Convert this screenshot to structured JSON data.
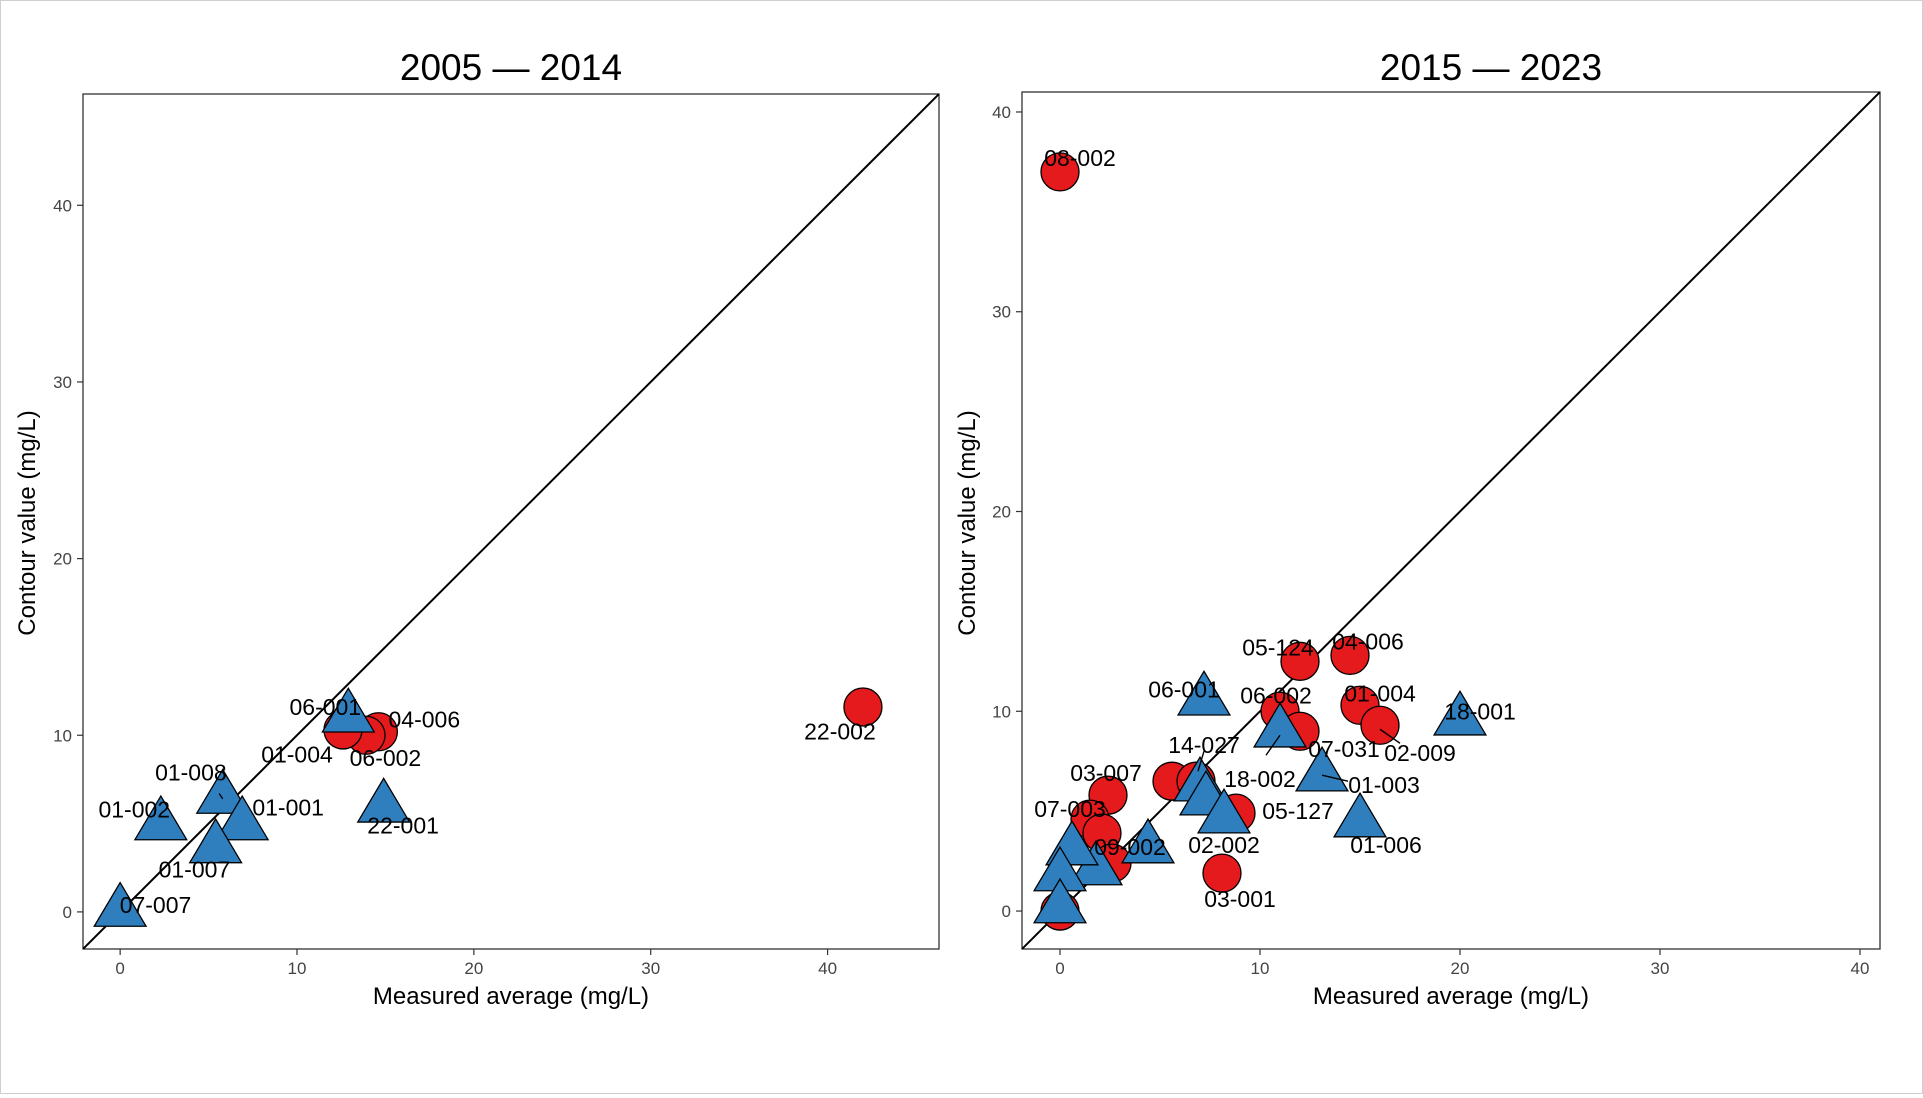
{
  "colors": {
    "circle": "#e41a1c",
    "triangle": "#2f7fbf",
    "outline": "#000000"
  },
  "chart_data": [
    {
      "type": "scatter",
      "title": "2005 — 2014",
      "xlabel": "Measured average (mg/L)",
      "ylabel": "Contour value (mg/L)",
      "xlim": [
        -2.1,
        46.3
      ],
      "ylim": [
        -2.1,
        46.3
      ],
      "xticks": [
        0,
        10,
        20,
        30,
        40
      ],
      "yticks": [
        0,
        10,
        20,
        30,
        40
      ],
      "reference_line": "y = x",
      "grid": false,
      "legend": "none",
      "points": [
        {
          "label": "22-002",
          "x": 42.0,
          "y": 11.6,
          "shape": "circle"
        },
        {
          "label": "04-006",
          "x": 14.6,
          "y": 10.2,
          "shape": "circle"
        },
        {
          "label": "06-002",
          "x": 13.9,
          "y": 10.0,
          "shape": "circle"
        },
        {
          "label": "01-004",
          "x": 12.6,
          "y": 10.3,
          "shape": "circle"
        },
        {
          "label": "06-001",
          "x": 12.9,
          "y": 11.3,
          "shape": "triangle"
        },
        {
          "label": "22-001",
          "x": 14.9,
          "y": 6.2,
          "shape": "triangle"
        },
        {
          "label": "01-008",
          "x": 5.8,
          "y": 6.7,
          "shape": "triangle"
        },
        {
          "label": "01-001",
          "x": 6.9,
          "y": 5.2,
          "shape": "triangle"
        },
        {
          "label": "01-002",
          "x": 2.3,
          "y": 5.2,
          "shape": "triangle"
        },
        {
          "label": "01-007",
          "x": 5.4,
          "y": 3.9,
          "shape": "triangle"
        },
        {
          "label": "07-007",
          "x": 0.0,
          "y": 0.3,
          "shape": "triangle"
        }
      ],
      "labels": [
        {
          "text": "22-002",
          "x": 40.7,
          "y": 10.2
        },
        {
          "text": "04-006",
          "x": 17.2,
          "y": 10.9
        },
        {
          "text": "06-002",
          "x": 15.0,
          "y": 8.7
        },
        {
          "text": "01-004",
          "x": 10.0,
          "y": 8.9
        },
        {
          "text": "06-001",
          "x": 11.6,
          "y": 11.6
        },
        {
          "text": "22-001",
          "x": 16.0,
          "y": 4.9
        },
        {
          "text": "01-008",
          "x": 4.0,
          "y": 7.9
        },
        {
          "text": "01-001",
          "x": 9.5,
          "y": 5.9
        },
        {
          "text": "01-002",
          "x": 0.8,
          "y": 5.8
        },
        {
          "text": "01-007",
          "x": 4.2,
          "y": 2.4
        },
        {
          "text": "07-007",
          "x": 2.0,
          "y": 0.4
        }
      ],
      "leaders": [
        {
          "x1": 5.8,
          "y1": 6.4,
          "x2": 5.6,
          "y2": 6.7
        }
      ]
    },
    {
      "type": "scatter",
      "title": "2015 — 2023",
      "xlabel": "Measured average (mg/L)",
      "ylabel": "Contour value (mg/L)",
      "xlim": [
        -1.9,
        41.0
      ],
      "ylim": [
        -1.9,
        41.0
      ],
      "xticks": [
        0,
        10,
        20,
        30,
        40
      ],
      "yticks": [
        0,
        10,
        20,
        30,
        40
      ],
      "reference_line": "y = x",
      "grid": false,
      "legend": "none",
      "points": [
        {
          "label": "08-002",
          "x": 0.0,
          "y": 37.0,
          "shape": "circle"
        },
        {
          "label": "05-124",
          "x": 12.0,
          "y": 12.5,
          "shape": "circle"
        },
        {
          "label": "04-006",
          "x": 14.5,
          "y": 12.8,
          "shape": "circle"
        },
        {
          "label": "01-004",
          "x": 15.0,
          "y": 10.3,
          "shape": "circle"
        },
        {
          "label": "02-009",
          "x": 16.0,
          "y": 9.3,
          "shape": "circle"
        },
        {
          "label": "06-002",
          "x": 11.0,
          "y": 10.0,
          "shape": "circle"
        },
        {
          "label": "07-031",
          "x": 12.0,
          "y": 9.0,
          "shape": "circle"
        },
        {
          "label": "05-127",
          "x": 8.8,
          "y": 4.9,
          "shape": "circle"
        },
        {
          "label": "",
          "x": 5.6,
          "y": 6.5,
          "shape": "circle"
        },
        {
          "label": "",
          "x": 6.8,
          "y": 6.5,
          "shape": "circle"
        },
        {
          "label": "03-001",
          "x": 8.1,
          "y": 1.9,
          "shape": "circle"
        },
        {
          "label": "03-007",
          "x": 2.4,
          "y": 5.8,
          "shape": "circle"
        },
        {
          "label": "07-003",
          "x": 1.5,
          "y": 4.6,
          "shape": "circle"
        },
        {
          "label": "",
          "x": 2.1,
          "y": 3.9,
          "shape": "circle"
        },
        {
          "label": "09-002",
          "x": 2.6,
          "y": 2.4,
          "shape": "circle"
        },
        {
          "label": "",
          "x": 0.0,
          "y": 0.0,
          "shape": "circle"
        },
        {
          "label": "06-001",
          "x": 7.2,
          "y": 10.8,
          "shape": "triangle"
        },
        {
          "label": "18-001",
          "x": 20.0,
          "y": 9.8,
          "shape": "triangle"
        },
        {
          "label": "14-027",
          "x": 7.0,
          "y": 6.5,
          "shape": "triangle"
        },
        {
          "label": "",
          "x": 7.3,
          "y": 5.8,
          "shape": "triangle"
        },
        {
          "label": "18-002",
          "x": 11.0,
          "y": 9.2,
          "shape": "triangle"
        },
        {
          "label": "01-003",
          "x": 13.1,
          "y": 7.0,
          "shape": "triangle"
        },
        {
          "label": "01-006",
          "x": 15.0,
          "y": 4.7,
          "shape": "triangle"
        },
        {
          "label": "02-002",
          "x": 8.2,
          "y": 4.9,
          "shape": "triangle"
        },
        {
          "label": "",
          "x": 4.4,
          "y": 3.4,
          "shape": "triangle"
        },
        {
          "label": "",
          "x": 1.8,
          "y": 2.3,
          "shape": "triangle"
        },
        {
          "label": "",
          "x": 0.6,
          "y": 3.3,
          "shape": "triangle"
        },
        {
          "label": "",
          "x": 0.0,
          "y": 2.0,
          "shape": "triangle"
        },
        {
          "label": "",
          "x": 0.0,
          "y": 0.4,
          "shape": "triangle"
        }
      ],
      "labels": [
        {
          "text": "08-002",
          "x": 1.0,
          "y": 37.7
        },
        {
          "text": "05-124",
          "x": 10.9,
          "y": 13.2
        },
        {
          "text": "04-006",
          "x": 15.4,
          "y": 13.5
        },
        {
          "text": "01-004",
          "x": 16.0,
          "y": 10.9
        },
        {
          "text": "18-001",
          "x": 21.0,
          "y": 10.0
        },
        {
          "text": "06-002",
          "x": 10.8,
          "y": 10.8
        },
        {
          "text": "06-001",
          "x": 6.2,
          "y": 11.1
        },
        {
          "text": "14-027",
          "x": 7.2,
          "y": 8.3
        },
        {
          "text": "07-031",
          "x": 14.2,
          "y": 8.1
        },
        {
          "text": "02-009",
          "x": 18.0,
          "y": 7.9
        },
        {
          "text": "18-002",
          "x": 10.0,
          "y": 6.6
        },
        {
          "text": "01-003",
          "x": 16.2,
          "y": 6.3
        },
        {
          "text": "05-127",
          "x": 11.9,
          "y": 5.0
        },
        {
          "text": "03-007",
          "x": 2.3,
          "y": 6.9
        },
        {
          "text": "07-003",
          "x": 0.5,
          "y": 5.1
        },
        {
          "text": "02-002",
          "x": 8.2,
          "y": 3.3
        },
        {
          "text": "09-002",
          "x": 3.5,
          "y": 3.2
        },
        {
          "text": "01-006",
          "x": 16.3,
          "y": 3.3
        },
        {
          "text": "03-001",
          "x": 9.0,
          "y": 0.6
        }
      ],
      "leaders": [
        {
          "x1": 6.9,
          "y1": 7.0,
          "x2": 7.2,
          "y2": 8.0
        },
        {
          "x1": 10.3,
          "y1": 7.8,
          "x2": 11.0,
          "y2": 8.8
        },
        {
          "x1": 13.1,
          "y1": 6.8,
          "x2": 14.4,
          "y2": 6.5
        },
        {
          "x1": 16.0,
          "y1": 9.1,
          "x2": 17.0,
          "y2": 8.4
        }
      ]
    }
  ]
}
